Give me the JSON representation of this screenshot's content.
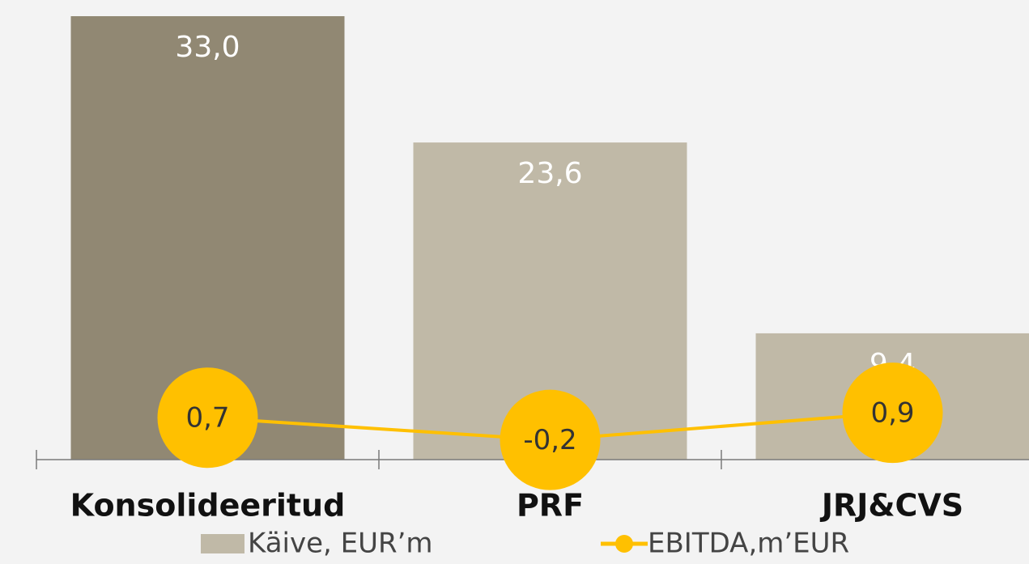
{
  "chart_data": {
    "type": "combo",
    "categories": [
      "Konsolideeritud",
      "PRF",
      "JRJ&CVS"
    ],
    "series": [
      {
        "name": "Käive, EUR’m",
        "type": "bar",
        "color": "#c0b9a7",
        "colors": [
          "#918873",
          "#c0b9a7",
          "#c0b9a7"
        ],
        "values": [
          33.0,
          23.6,
          9.4
        ],
        "value_labels": [
          "33,0",
          "23,6",
          "9,4"
        ]
      },
      {
        "name": "EBITDA,m’EUR",
        "type": "line",
        "axis": "y2",
        "color": "#ffc000",
        "values": [
          0.7,
          -0.2,
          0.9
        ],
        "value_labels": [
          "0,7",
          "-0,2",
          "0,9"
        ]
      }
    ],
    "ylim": [
      0,
      33
    ],
    "y2lim": [
      -1,
      17
    ],
    "grid": false
  }
}
